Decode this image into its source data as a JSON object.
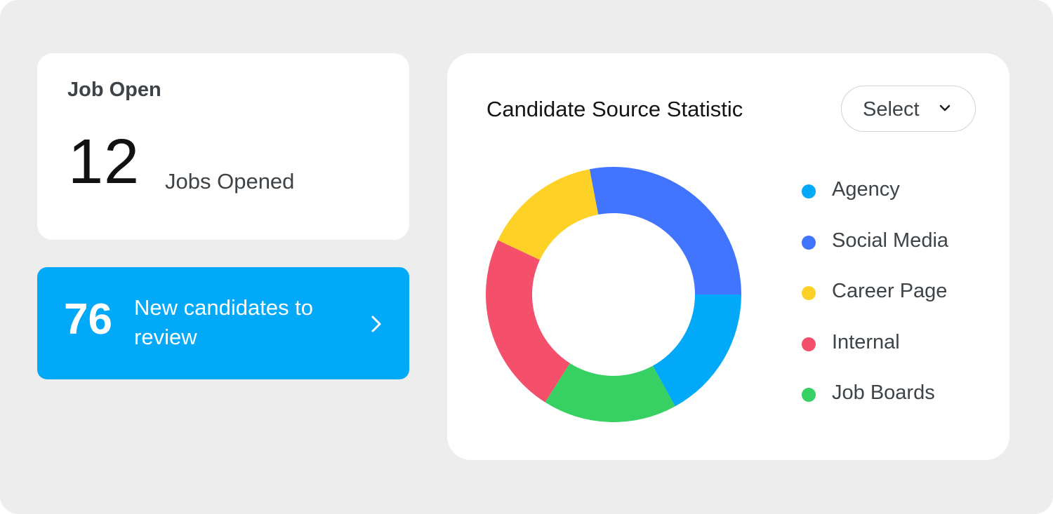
{
  "job_open": {
    "title": "Job Open",
    "count": "12",
    "subtitle": "Jobs Opened"
  },
  "review": {
    "count": "76",
    "text": "New candidates to review",
    "icon": "chevron-right-icon"
  },
  "colors": {
    "page_bg": "#ededed",
    "card_bg": "#ffffff",
    "review_bg": "#03a9f9"
  },
  "candidate_source": {
    "select_label": "Select",
    "select_icon": "chevron-down-icon"
  },
  "chart_data": {
    "type": "pie",
    "title": "Candidate Source Statistic",
    "donut": true,
    "legend_position": "right",
    "series": [
      {
        "name": "Agency",
        "value": 17,
        "color": "#03a9f9"
      },
      {
        "name": "Job Boards",
        "value": 17,
        "color": "#36d063"
      },
      {
        "name": "Internal",
        "value": 23,
        "color": "#f5506b"
      },
      {
        "name": "Career Page",
        "value": 15,
        "color": "#fdd126"
      },
      {
        "name": "Social Media",
        "value": 28,
        "color": "#4275ff"
      }
    ],
    "legend_order": [
      "Agency",
      "Social Media",
      "Career Page",
      "Internal",
      "Job Boards"
    ]
  }
}
